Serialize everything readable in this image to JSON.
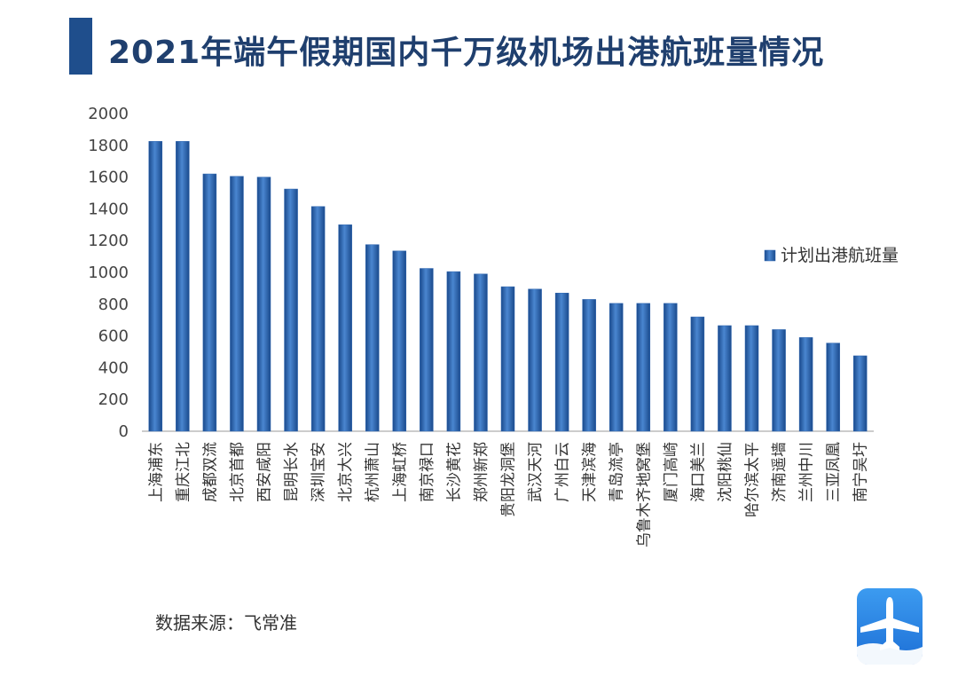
{
  "title": "2021年端午假期国内千万级机场出港航班量情况",
  "source": "数据来源：飞常准",
  "logo_icon": "airplane-app-icon",
  "colors": {
    "bar": "#2e66b1",
    "title": "#1f3f6e",
    "accent": "#1f4e8c"
  },
  "chart_data": {
    "type": "bar",
    "title": "2021年端午假期国内千万级机场出港航班量情况",
    "xlabel": "",
    "ylabel": "",
    "ylim": [
      0,
      2000
    ],
    "yticks": [
      0,
      200,
      400,
      600,
      800,
      1000,
      1200,
      1400,
      1600,
      1800,
      2000
    ],
    "grid": false,
    "legend": "right",
    "categories": [
      "上海浦东",
      "重庆江北",
      "成都双流",
      "北京首都",
      "西安咸阳",
      "昆明长水",
      "深圳宝安",
      "北京大兴",
      "杭州萧山",
      "上海虹桥",
      "南京禄口",
      "长沙黄花",
      "郑州新郑",
      "贵阳龙洞堡",
      "武汉天河",
      "广州白云",
      "天津滨海",
      "青岛流亭",
      "乌鲁木齐地窝堡",
      "厦门高崎",
      "海口美兰",
      "沈阳桃仙",
      "哈尔滨太平",
      "济南遥墙",
      "兰州中川",
      "三亚凤凰",
      "南宁吴圩"
    ],
    "series": [
      {
        "name": "计划出港航班量",
        "values": [
          1825,
          1825,
          1620,
          1605,
          1600,
          1525,
          1415,
          1300,
          1175,
          1135,
          1025,
          1005,
          990,
          910,
          895,
          870,
          830,
          805,
          805,
          805,
          720,
          665,
          665,
          640,
          590,
          555,
          475
        ]
      }
    ]
  }
}
